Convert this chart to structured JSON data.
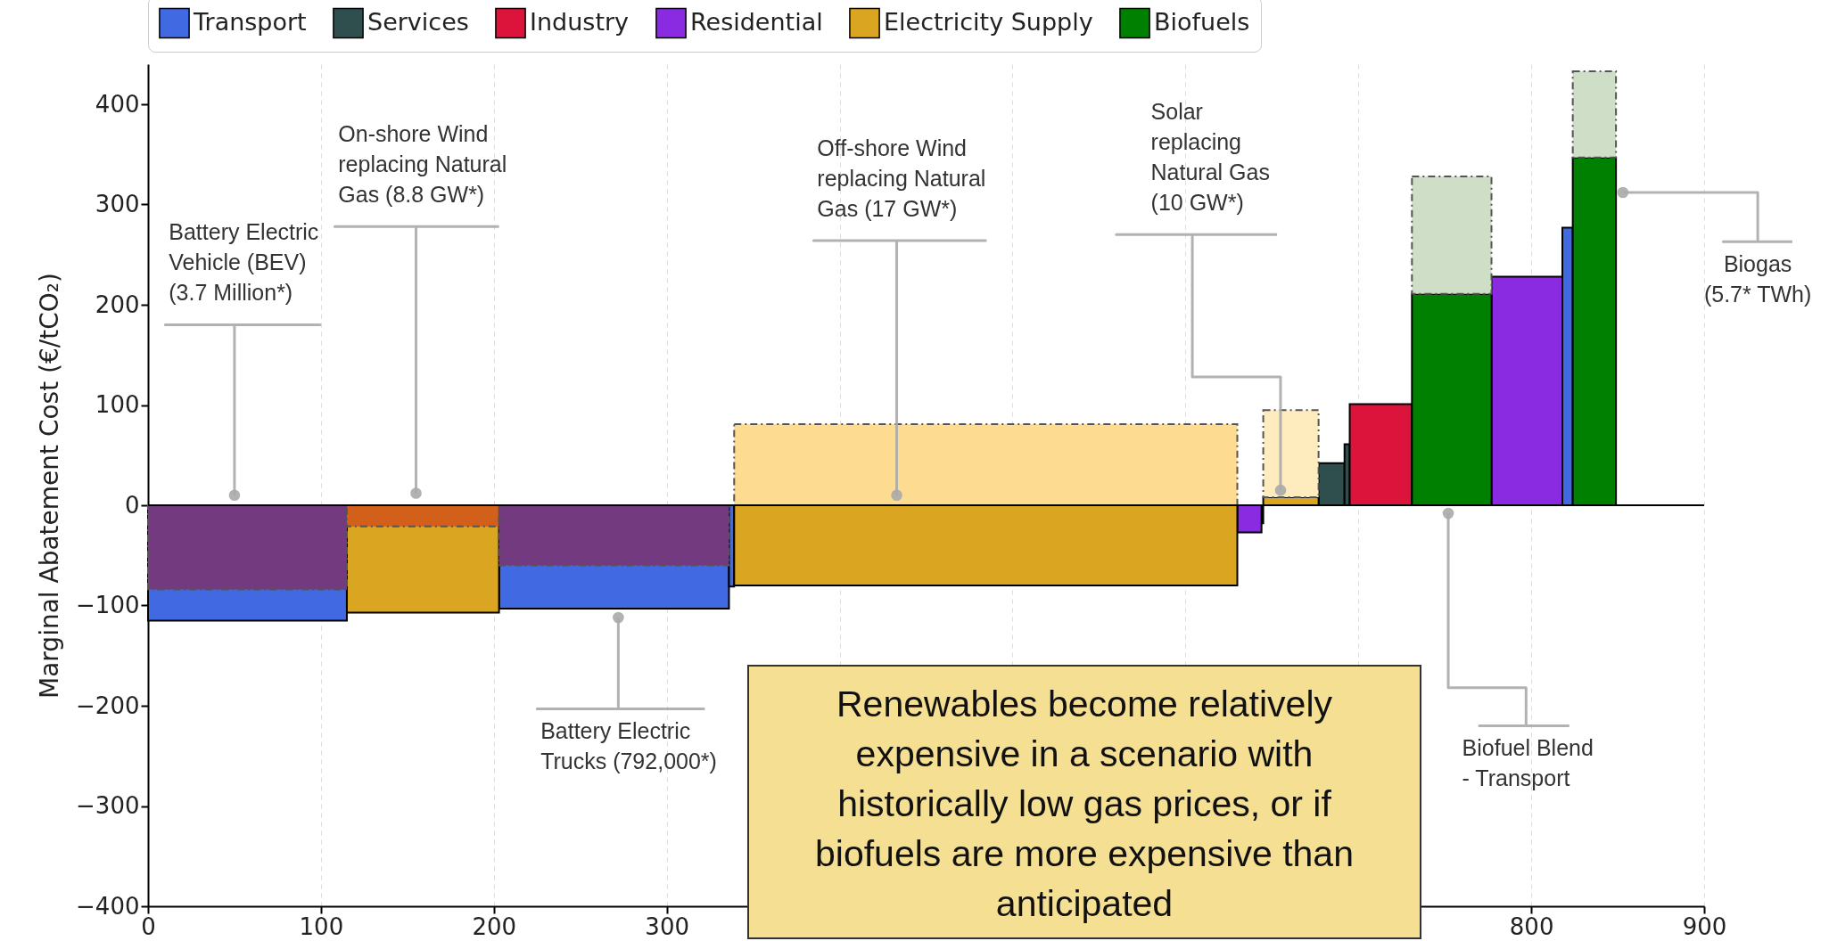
{
  "chart_data": {
    "type": "histogram",
    "ylabel": "Marginal Abatement Cost (€/tCO₂)",
    "bins": [
      0,
      115,
      203,
      336,
      339,
      630,
      644,
      645,
      677,
      692,
      695,
      731,
      777,
      818,
      824,
      849
    ],
    "series": [
      {
        "name": "Transport",
        "color": "#4169e1",
        "values": [
          -115,
          null,
          -103,
          -81,
          null,
          null,
          null,
          null,
          null,
          null,
          null,
          null,
          null,
          277,
          null
        ]
      },
      {
        "name": "Services",
        "color": "#2f4f4f",
        "values": [
          null,
          null,
          null,
          null,
          null,
          null,
          -18,
          null,
          42,
          61,
          null,
          null,
          null,
          null,
          null
        ]
      },
      {
        "name": "Industry",
        "color": "#dc143c",
        "values": [
          null,
          null,
          null,
          null,
          null,
          null,
          null,
          null,
          null,
          null,
          101,
          null,
          null,
          null,
          null
        ]
      },
      {
        "name": "Residential",
        "color": "#8a2be2",
        "values": [
          null,
          null,
          null,
          null,
          null,
          -27,
          null,
          null,
          null,
          null,
          null,
          null,
          228,
          null,
          null
        ]
      },
      {
        "name": "Electricity Supply",
        "color": "#daa520",
        "values": [
          null,
          -107,
          null,
          null,
          -80,
          null,
          null,
          8,
          null,
          null,
          null,
          null,
          null,
          null,
          null
        ]
      },
      {
        "name": "Biofuels",
        "color": "#008000",
        "values": [
          null,
          null,
          null,
          null,
          null,
          null,
          null,
          null,
          null,
          null,
          null,
          211,
          null,
          null,
          347
        ]
      },
      {
        "line_style": "dashed",
        "colors": [
          "#743a80",
          "#d2601a",
          "#743a80",
          null,
          null,
          null,
          null,
          null,
          null,
          null,
          null,
          null,
          null,
          null,
          null
        ],
        "values": [
          -84,
          -21,
          -60,
          null,
          null,
          null,
          null,
          null,
          null,
          null,
          null,
          null,
          null,
          null,
          null
        ]
      },
      {
        "line_style": "dashed",
        "colors": [
          null,
          null,
          null,
          null,
          "#fddb91",
          null,
          null,
          "#feecbf",
          null,
          null,
          null,
          "#cfdec6",
          null,
          null,
          "#cfdec6"
        ],
        "base": [
          null,
          null,
          null,
          null,
          0,
          null,
          null,
          8,
          null,
          null,
          null,
          211,
          null,
          null,
          347
        ],
        "values": [
          null,
          null,
          null,
          null,
          81,
          null,
          null,
          87,
          null,
          null,
          null,
          117,
          null,
          null,
          86
        ]
      }
    ],
    "xlim": [
      0,
      900
    ],
    "xticks": [
      0,
      100,
      200,
      300,
      {
        "value": 400,
        "label": null
      },
      {
        "value": 500,
        "label": null
      },
      {
        "value": 600,
        "label": null
      },
      {
        "value": 700,
        "label": null
      },
      800,
      900
    ],
    "ylim": [
      -400,
      440
    ],
    "yticks": [
      -400,
      -300,
      -200,
      -100,
      0,
      100,
      200,
      300,
      400
    ],
    "grid": "x",
    "legend": "top",
    "ref_lines": [
      {
        "axis": "y",
        "value": 0,
        "color": "#000000"
      }
    ],
    "annotations": [
      {
        "text": "Battery Electric Vehicle (BEV) (3.7 Million*)",
        "x": 50,
        "y": 10
      },
      {
        "text": "On-shore Wind replacing Natural Gas (8.8 GW*)",
        "x": 155,
        "y": 12
      },
      {
        "text": "Battery Electric Trucks (792,000*)",
        "x": 272,
        "y": -112
      },
      {
        "text": "Off-shore Wind replacing Natural Gas (17 GW*)",
        "x": 433,
        "y": 10
      },
      {
        "text": "Solar replacing Natural Gas (10 GW*)",
        "x": 655,
        "y": 15
      },
      {
        "text": "Biofuel Blend - Transport",
        "x": 752,
        "y": -8
      },
      {
        "text": "Biogas (5.7* TWh)",
        "x": 853,
        "y": 312
      },
      "Renewables become relatively expensive in a scenario with historically low gas prices, or if biofuels are more expensive than anticipated"
    ]
  }
}
